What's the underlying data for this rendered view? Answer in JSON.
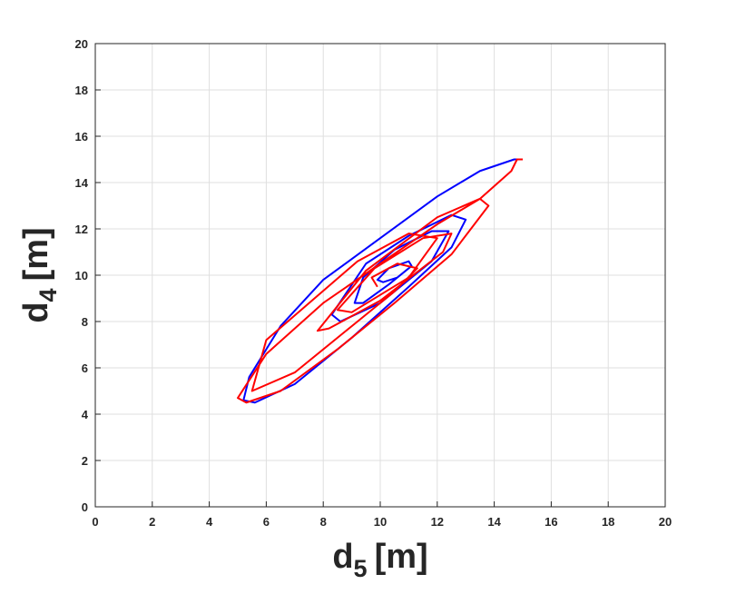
{
  "chart_data": {
    "type": "line",
    "xlabel": [
      "d",
      "5",
      "[m]"
    ],
    "ylabel": [
      "d",
      "4",
      "[m]"
    ],
    "xlim": [
      0,
      20
    ],
    "ylim": [
      0,
      20
    ],
    "xticks": [
      0,
      2,
      4,
      6,
      8,
      10,
      12,
      14,
      16,
      18,
      20
    ],
    "yticks": [
      0,
      2,
      4,
      6,
      8,
      10,
      12,
      14,
      16,
      18,
      20
    ],
    "grid": true,
    "series": [
      {
        "color": "#0000ff",
        "x": [
          14.9,
          14.7,
          13.5,
          12,
          10,
          8,
          6.5,
          5.4,
          5.2,
          5.6,
          7,
          9,
          11,
          12.5,
          13,
          12.5,
          11,
          9.5,
          8.3,
          8.6,
          10,
          11.8,
          12.4,
          11.8,
          10.5,
          9.4,
          9.1,
          9.4,
          10.3,
          11.1,
          11,
          10.3,
          9.9,
          10.1,
          10.6
        ],
        "y": [
          15.0,
          15.0,
          14.5,
          13.4,
          11.6,
          9.8,
          7.8,
          5.6,
          4.6,
          4.5,
          5.3,
          7.3,
          9.5,
          11.2,
          12.4,
          12.6,
          11.7,
          10.5,
          8.3,
          8.0,
          8.8,
          10.6,
          11.9,
          11.9,
          11.1,
          9.9,
          8.8,
          8.8,
          9.6,
          10.4,
          10.6,
          10.3,
          9.8,
          9.7,
          9.9
        ]
      },
      {
        "color": "#ff0000",
        "x": [
          15,
          14.8,
          14.6,
          13.5,
          12,
          10,
          8,
          6,
          5,
          5.3,
          6.5,
          8.5,
          10.5,
          12.5,
          13.8,
          13.5,
          12,
          9.5,
          7.8,
          8.2,
          10,
          12.2,
          12.5,
          11.5,
          9.8,
          8.5,
          9,
          11,
          12,
          11,
          9.2,
          6,
          5.5,
          7,
          9,
          10.5,
          11.3,
          10.6,
          9.7,
          9.9
        ],
        "y": [
          15,
          15,
          14.5,
          13.3,
          12.2,
          10.5,
          8.8,
          6.6,
          4.7,
          4.5,
          5.0,
          6.8,
          8.8,
          10.9,
          13.0,
          13.3,
          12.5,
          10.2,
          7.6,
          7.7,
          8.9,
          11.0,
          11.8,
          11.6,
          10.3,
          8.5,
          8.4,
          9.9,
          11.6,
          11.8,
          10.6,
          7.2,
          5.0,
          5.8,
          7.8,
          9.3,
          10.3,
          10.5,
          9.9,
          9.5
        ]
      }
    ]
  }
}
